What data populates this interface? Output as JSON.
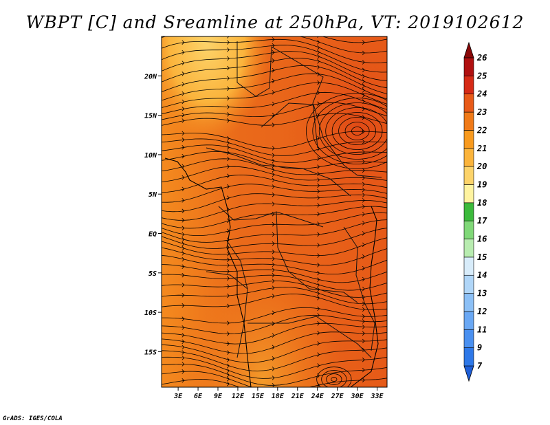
{
  "title": "WBPT [C] and Sreamline at 250hPa, VT: 2019102612",
  "credit": "GrADS: IGES/COLA",
  "map": {
    "lon_labels": [
      "3E",
      "6E",
      "9E",
      "12E",
      "15E",
      "18E",
      "21E",
      "24E",
      "27E",
      "30E",
      "33E"
    ],
    "lon_values": [
      3,
      6,
      9,
      12,
      15,
      18,
      21,
      24,
      27,
      30,
      33
    ],
    "lat_labels": [
      "20N",
      "15N",
      "10N",
      "5N",
      "EQ",
      "5S",
      "10S",
      "15S"
    ],
    "lat_values": [
      20,
      15,
      10,
      5,
      0,
      -5,
      -10,
      -15
    ],
    "lon_range": [
      0.5,
      34.5
    ],
    "lat_range": [
      -19.5,
      25
    ]
  },
  "colorbar": {
    "labels": [
      "7",
      "9",
      "11",
      "12",
      "13",
      "14",
      "15",
      "16",
      "17",
      "18",
      "19",
      "20",
      "21",
      "22",
      "23",
      "24",
      "25",
      "26"
    ],
    "colors": [
      "#1e5fd8",
      "#2e78e8",
      "#4a90f0",
      "#6aa8f4",
      "#8cc0f6",
      "#b0d6f8",
      "#d8ecfa",
      "#b8ecb0",
      "#80d878",
      "#3cba3c",
      "#fff3a0",
      "#fcd36a",
      "#fbb43c",
      "#f89a1e",
      "#f07a18",
      "#e85a18",
      "#d62a16",
      "#b01010",
      "#8a0808"
    ]
  }
}
